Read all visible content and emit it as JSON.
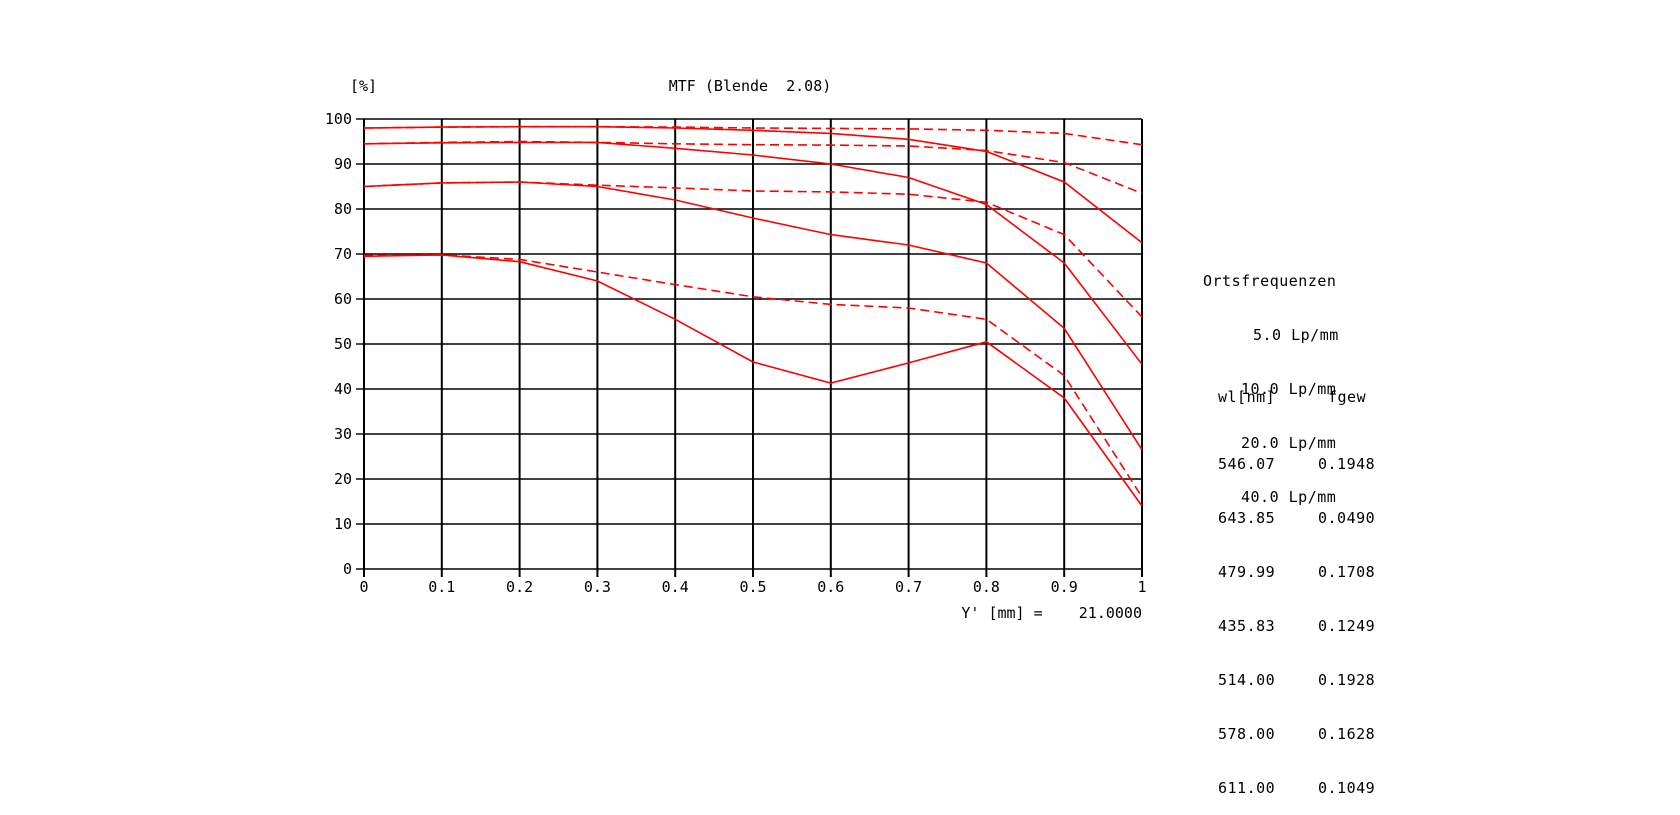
{
  "chart_data": {
    "type": "line",
    "title": "MTF (Blende  2.08)",
    "ylabel": "[%]",
    "xlabel": "Y' [mm] =    21.0000",
    "xlim": [
      0,
      1
    ],
    "ylim": [
      0,
      100
    ],
    "x_ticks": [
      "0",
      "0.1",
      "0.2",
      "0.3",
      "0.4",
      "0.5",
      "0.6",
      "0.7",
      "0.8",
      "0.9",
      "1"
    ],
    "y_ticks": [
      "0",
      "10",
      "20",
      "30",
      "40",
      "50",
      "60",
      "70",
      "80",
      "90",
      "100"
    ],
    "grid": true,
    "line_color": "#ff0000",
    "x": [
      0,
      0.1,
      0.2,
      0.3,
      0.4,
      0.5,
      0.6,
      0.7,
      0.8,
      0.9,
      1.0
    ],
    "series": [
      {
        "style": "solid",
        "values": [
          98.0,
          98.2,
          98.3,
          98.3,
          98.0,
          97.5,
          96.8,
          95.5,
          92.8,
          86.0,
          72.5
        ]
      },
      {
        "style": "dashed",
        "values": [
          98.0,
          98.2,
          98.3,
          98.3,
          98.2,
          98.0,
          97.9,
          97.8,
          97.5,
          96.8,
          94.3
        ]
      },
      {
        "style": "solid",
        "values": [
          94.5,
          94.7,
          94.8,
          94.8,
          93.5,
          92.0,
          90.0,
          87.0,
          81.0,
          68.0,
          45.5
        ]
      },
      {
        "style": "dashed",
        "values": [
          94.5,
          94.8,
          95.0,
          94.8,
          94.5,
          94.3,
          94.2,
          94.0,
          93.0,
          90.3,
          83.5
        ]
      },
      {
        "style": "solid",
        "values": [
          85.0,
          85.8,
          86.0,
          85.0,
          82.0,
          78.0,
          74.3,
          72.0,
          68.0,
          53.5,
          26.5
        ]
      },
      {
        "style": "dashed",
        "values": [
          85.0,
          85.8,
          86.0,
          85.3,
          84.7,
          84.0,
          83.8,
          83.3,
          81.5,
          74.3,
          56.0
        ]
      },
      {
        "style": "solid",
        "values": [
          69.5,
          69.8,
          68.3,
          64.0,
          55.5,
          46.0,
          41.3,
          45.8,
          50.5,
          38.0,
          14.0
        ]
      },
      {
        "style": "dashed",
        "values": [
          69.7,
          69.8,
          68.8,
          66.0,
          63.2,
          60.5,
          58.8,
          58.0,
          55.5,
          43.0,
          16.0
        ]
      }
    ]
  },
  "legend": {
    "heading": "Ortsfrequenzen",
    "items": [
      "5.0 Lp/mm",
      "10.0 Lp/mm",
      "20.0 Lp/mm",
      "40.0 Lp/mm"
    ]
  },
  "wl_table": {
    "header": {
      "wl": "wl[nm]",
      "fgew": "fgew"
    },
    "rows": [
      {
        "wl": "546.07",
        "fgew": "0.1948"
      },
      {
        "wl": "643.85",
        "fgew": "0.0490"
      },
      {
        "wl": "479.99",
        "fgew": "0.1708"
      },
      {
        "wl": "435.83",
        "fgew": "0.1249"
      },
      {
        "wl": "514.00",
        "fgew": "0.1928"
      },
      {
        "wl": "578.00",
        "fgew": "0.1628"
      },
      {
        "wl": "611.00",
        "fgew": "0.1049"
      }
    ]
  }
}
